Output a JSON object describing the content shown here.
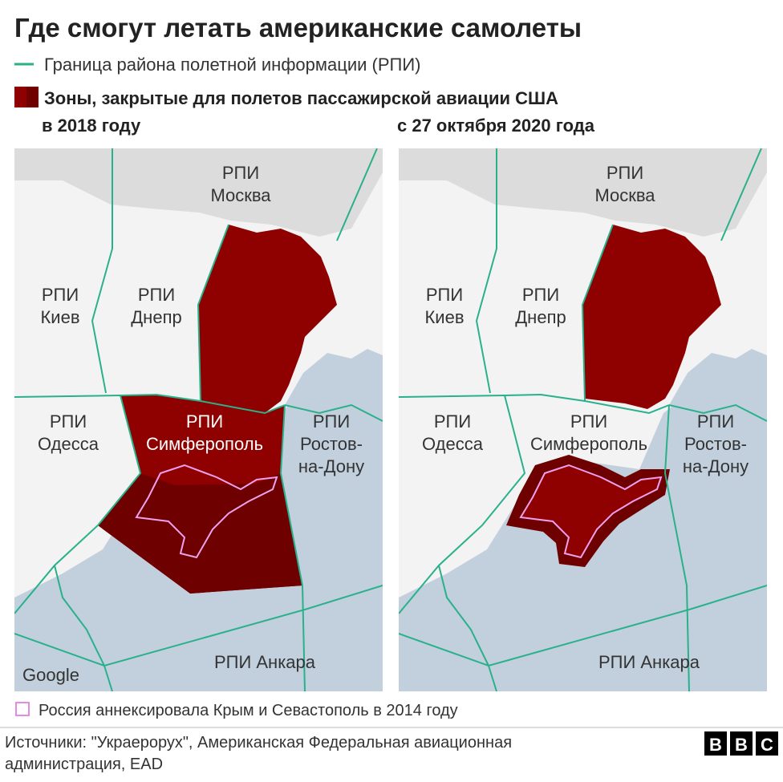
{
  "title": "Где смогут летать американские самолеты",
  "legend": {
    "fir_boundary": "Граница района полетной информации (РПИ)",
    "closed_zones": "Зоны, закрытые для полетов пассажирской авиации США"
  },
  "panels": [
    {
      "title": "в 2018 году",
      "labels": [
        [
          "РПИ",
          "Москва"
        ],
        [
          "РПИ",
          "Киев"
        ],
        [
          "РПИ",
          "Днепр"
        ],
        [
          "РПИ",
          "Одесса"
        ],
        [
          "РПИ",
          "Симферополь"
        ],
        [
          "РПИ",
          "Ростов-",
          "на-Дону"
        ],
        [
          "РПИ Анкара"
        ]
      ]
    },
    {
      "title": "с 27 октября 2020 года",
      "labels": [
        [
          "РПИ",
          "Москва"
        ],
        [
          "РПИ",
          "Киев"
        ],
        [
          "РПИ",
          "Днепр"
        ],
        [
          "РПИ",
          "Одесса"
        ],
        [
          "РПИ",
          "Симферополь"
        ],
        [
          "РПИ",
          "Ростов-",
          "на-Дону"
        ],
        [
          "РПИ Анкара"
        ]
      ]
    }
  ],
  "map_credit": "Google",
  "note": "Россия аннексировала Крым и Севастополь в 2014 году",
  "source": [
    "Источники: \"Украерорух\", Американская Федеральная авиационная",
    "администрация, EAD"
  ],
  "logo": [
    "B",
    "B",
    "C"
  ]
}
